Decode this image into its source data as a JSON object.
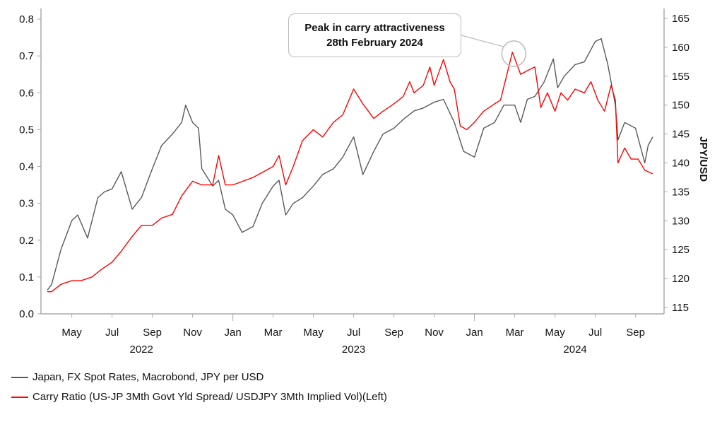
{
  "chart_data": {
    "type": "line",
    "title": "",
    "xlabel": "",
    "ylabel_left": "",
    "ylabel_right": "JPY/USD",
    "ylim_left": [
      0.0,
      0.8
    ],
    "ylim_right": [
      115,
      165
    ],
    "left_ticks": [
      "0.0",
      "0.1",
      "0.2",
      "0.3",
      "0.4",
      "0.5",
      "0.6",
      "0.7",
      "0.8"
    ],
    "right_ticks": [
      "115",
      "120",
      "125",
      "130",
      "135",
      "140",
      "145",
      "150",
      "155",
      "160",
      "165"
    ],
    "x_month_labels": [
      {
        "label": "May",
        "date": "2022-05-01"
      },
      {
        "label": "Jul",
        "date": "2022-07-01"
      },
      {
        "label": "Sep",
        "date": "2022-09-01"
      },
      {
        "label": "Nov",
        "date": "2022-11-01"
      },
      {
        "label": "Jan",
        "date": "2023-01-01"
      },
      {
        "label": "Mar",
        "date": "2023-03-01"
      },
      {
        "label": "May",
        "date": "2023-05-01"
      },
      {
        "label": "Jul",
        "date": "2023-07-01"
      },
      {
        "label": "Sep",
        "date": "2023-09-01"
      },
      {
        "label": "Nov",
        "date": "2023-11-01"
      },
      {
        "label": "Jan",
        "date": "2024-01-01"
      },
      {
        "label": "Mar",
        "date": "2024-03-01"
      },
      {
        "label": "May",
        "date": "2024-05-01"
      },
      {
        "label": "Jul",
        "date": "2024-07-01"
      },
      {
        "label": "Sep",
        "date": "2024-09-01"
      }
    ],
    "x_year_labels": [
      {
        "label": "2022",
        "date": "2022-08-15"
      },
      {
        "label": "2023",
        "date": "2023-07-01"
      },
      {
        "label": "2024",
        "date": "2024-06-01"
      }
    ],
    "grid": false,
    "legend_placement": "bottom-left",
    "annotation": {
      "line1": "Peak in carry attractiveness",
      "line2": "28th February 2024",
      "date": "2024-02-28",
      "value": 0.71
    },
    "series": [
      {
        "name": "Japan, FX Spot Rates, Macrobond, JPY per USD",
        "axis": "right",
        "color": "#595959",
        "points": [
          [
            "2022-03-25",
            118
          ],
          [
            "2022-04-01",
            119
          ],
          [
            "2022-04-15",
            125
          ],
          [
            "2022-05-01",
            130
          ],
          [
            "2022-05-10",
            131
          ],
          [
            "2022-05-25",
            127
          ],
          [
            "2022-06-10",
            134
          ],
          [
            "2022-06-20",
            135
          ],
          [
            "2022-07-01",
            135.5
          ],
          [
            "2022-07-15",
            138.5
          ],
          [
            "2022-08-01",
            132
          ],
          [
            "2022-08-15",
            134
          ],
          [
            "2022-09-01",
            139
          ],
          [
            "2022-09-15",
            143
          ],
          [
            "2022-10-01",
            145
          ],
          [
            "2022-10-15",
            147
          ],
          [
            "2022-10-21",
            150
          ],
          [
            "2022-11-01",
            147
          ],
          [
            "2022-11-10",
            146
          ],
          [
            "2022-11-15",
            139
          ],
          [
            "2022-12-01",
            136
          ],
          [
            "2022-12-10",
            137
          ],
          [
            "2022-12-20",
            132
          ],
          [
            "2023-01-01",
            131
          ],
          [
            "2023-01-15",
            128
          ],
          [
            "2023-02-01",
            129
          ],
          [
            "2023-02-15",
            133
          ],
          [
            "2023-03-01",
            136
          ],
          [
            "2023-03-10",
            137
          ],
          [
            "2023-03-20",
            131
          ],
          [
            "2023-04-01",
            133
          ],
          [
            "2023-04-15",
            134
          ],
          [
            "2023-05-01",
            136
          ],
          [
            "2023-05-15",
            138
          ],
          [
            "2023-06-01",
            139
          ],
          [
            "2023-06-15",
            141
          ],
          [
            "2023-07-01",
            144.5
          ],
          [
            "2023-07-15",
            138
          ],
          [
            "2023-08-01",
            142
          ],
          [
            "2023-08-15",
            145
          ],
          [
            "2023-09-01",
            146
          ],
          [
            "2023-09-15",
            147.5
          ],
          [
            "2023-10-01",
            149
          ],
          [
            "2023-10-15",
            149.5
          ],
          [
            "2023-11-01",
            150.5
          ],
          [
            "2023-11-15",
            151
          ],
          [
            "2023-12-01",
            147
          ],
          [
            "2023-12-15",
            142
          ],
          [
            "2024-01-01",
            141
          ],
          [
            "2024-01-15",
            146
          ],
          [
            "2024-02-01",
            147
          ],
          [
            "2024-02-15",
            150
          ],
          [
            "2024-03-01",
            150
          ],
          [
            "2024-03-10",
            147
          ],
          [
            "2024-03-20",
            151
          ],
          [
            "2024-04-01",
            151.5
          ],
          [
            "2024-04-15",
            154
          ],
          [
            "2024-04-29",
            158
          ],
          [
            "2024-05-05",
            153
          ],
          [
            "2024-05-15",
            155
          ],
          [
            "2024-06-01",
            157
          ],
          [
            "2024-06-15",
            157.5
          ],
          [
            "2024-07-01",
            161
          ],
          [
            "2024-07-10",
            161.5
          ],
          [
            "2024-07-20",
            157
          ],
          [
            "2024-08-01",
            150
          ],
          [
            "2024-08-05",
            144
          ],
          [
            "2024-08-15",
            147
          ],
          [
            "2024-09-01",
            146
          ],
          [
            "2024-09-15",
            140
          ],
          [
            "2024-09-20",
            143
          ],
          [
            "2024-09-27",
            144.5
          ]
        ]
      },
      {
        "name": "Carry Ratio (US-JP 3Mth Govt Yld Spread/ USDJPY 3Mth Implied Vol)(Left)",
        "axis": "left",
        "color": "#ff0000",
        "points": [
          [
            "2022-03-25",
            0.06
          ],
          [
            "2022-04-01",
            0.06
          ],
          [
            "2022-04-15",
            0.08
          ],
          [
            "2022-05-01",
            0.09
          ],
          [
            "2022-05-15",
            0.09
          ],
          [
            "2022-06-01",
            0.1
          ],
          [
            "2022-06-15",
            0.12
          ],
          [
            "2022-07-01",
            0.14
          ],
          [
            "2022-07-15",
            0.17
          ],
          [
            "2022-08-01",
            0.21
          ],
          [
            "2022-08-15",
            0.24
          ],
          [
            "2022-09-01",
            0.24
          ],
          [
            "2022-09-15",
            0.26
          ],
          [
            "2022-10-01",
            0.27
          ],
          [
            "2022-10-15",
            0.32
          ],
          [
            "2022-11-01",
            0.36
          ],
          [
            "2022-11-15",
            0.35
          ],
          [
            "2022-12-01",
            0.35
          ],
          [
            "2022-12-10",
            0.43
          ],
          [
            "2022-12-20",
            0.35
          ],
          [
            "2023-01-01",
            0.35
          ],
          [
            "2023-02-01",
            0.37
          ],
          [
            "2023-03-01",
            0.4
          ],
          [
            "2023-03-10",
            0.43
          ],
          [
            "2023-03-20",
            0.35
          ],
          [
            "2023-04-01",
            0.4
          ],
          [
            "2023-04-15",
            0.47
          ],
          [
            "2023-05-01",
            0.5
          ],
          [
            "2023-05-15",
            0.48
          ],
          [
            "2023-06-01",
            0.52
          ],
          [
            "2023-06-15",
            0.54
          ],
          [
            "2023-07-01",
            0.61
          ],
          [
            "2023-07-15",
            0.57
          ],
          [
            "2023-08-01",
            0.53
          ],
          [
            "2023-08-15",
            0.55
          ],
          [
            "2023-09-01",
            0.57
          ],
          [
            "2023-09-15",
            0.59
          ],
          [
            "2023-09-25",
            0.63
          ],
          [
            "2023-10-01",
            0.6
          ],
          [
            "2023-10-15",
            0.62
          ],
          [
            "2023-10-25",
            0.67
          ],
          [
            "2023-11-01",
            0.62
          ],
          [
            "2023-11-15",
            0.69
          ],
          [
            "2023-11-25",
            0.63
          ],
          [
            "2023-12-01",
            0.61
          ],
          [
            "2023-12-10",
            0.51
          ],
          [
            "2023-12-20",
            0.5
          ],
          [
            "2024-01-01",
            0.52
          ],
          [
            "2024-01-15",
            0.55
          ],
          [
            "2024-02-01",
            0.57
          ],
          [
            "2024-02-10",
            0.58
          ],
          [
            "2024-02-28",
            0.71
          ],
          [
            "2024-03-10",
            0.65
          ],
          [
            "2024-03-20",
            0.66
          ],
          [
            "2024-04-01",
            0.67
          ],
          [
            "2024-04-10",
            0.56
          ],
          [
            "2024-04-20",
            0.6
          ],
          [
            "2024-05-01",
            0.55
          ],
          [
            "2024-05-10",
            0.6
          ],
          [
            "2024-05-20",
            0.58
          ],
          [
            "2024-06-01",
            0.61
          ],
          [
            "2024-06-15",
            0.6
          ],
          [
            "2024-06-25",
            0.63
          ],
          [
            "2024-07-05",
            0.58
          ],
          [
            "2024-07-15",
            0.55
          ],
          [
            "2024-07-25",
            0.62
          ],
          [
            "2024-08-01",
            0.58
          ],
          [
            "2024-08-05",
            0.41
          ],
          [
            "2024-08-15",
            0.45
          ],
          [
            "2024-08-25",
            0.42
          ],
          [
            "2024-09-05",
            0.42
          ],
          [
            "2024-09-15",
            0.39
          ],
          [
            "2024-09-27",
            0.38
          ]
        ]
      }
    ]
  }
}
